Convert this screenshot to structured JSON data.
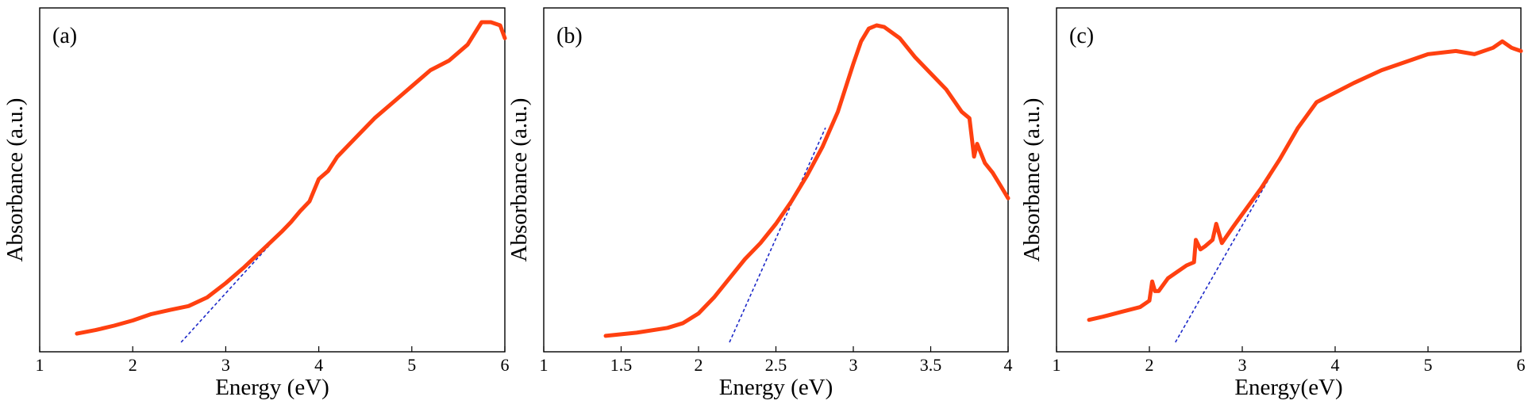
{
  "chart_data": [
    {
      "type": "line",
      "panel_label": "(a)",
      "xlabel": "Energy (eV)",
      "ylabel": "Absorbance (a.u.)",
      "xlim": [
        1,
        6
      ],
      "ylim": [
        0,
        1
      ],
      "x_ticks": [
        1,
        2,
        3,
        4,
        5,
        6
      ],
      "x_tick_labels": [
        "1",
        "2",
        "3",
        "4",
        "5",
        "6"
      ],
      "y_ticks_labeled": false,
      "series": [
        {
          "color": "#ff4010",
          "x": [
            1.4,
            1.6,
            1.8,
            2.0,
            2.2,
            2.4,
            2.6,
            2.8,
            3.0,
            3.2,
            3.4,
            3.6,
            3.7,
            3.8,
            3.9,
            4.0,
            4.1,
            4.2,
            4.4,
            4.6,
            4.8,
            5.0,
            5.2,
            5.4,
            5.6,
            5.75,
            5.85,
            5.95,
            6.0
          ],
          "y": [
            0.027,
            0.038,
            0.052,
            0.068,
            0.088,
            0.101,
            0.113,
            0.14,
            0.185,
            0.235,
            0.29,
            0.345,
            0.375,
            0.41,
            0.44,
            0.51,
            0.535,
            0.58,
            0.64,
            0.7,
            0.75,
            0.8,
            0.85,
            0.88,
            0.93,
            1.0,
            1.0,
            0.99,
            0.95
          ]
        }
      ],
      "tangent": {
        "color": "#1c28c8",
        "dashed": true,
        "x": [
          2.52,
          3.85
        ],
        "y": [
          0.0,
          0.425
        ]
      }
    },
    {
      "type": "line",
      "panel_label": "(b)",
      "xlabel": "Energy (eV)",
      "ylabel": "Absorbance (a.u.)",
      "xlim": [
        1,
        4
      ],
      "ylim": [
        0,
        1
      ],
      "x_ticks": [
        1,
        1.5,
        2,
        2.5,
        3,
        3.5,
        4
      ],
      "x_tick_labels": [
        "1",
        "1.5",
        "2",
        "2.5",
        "3",
        "3.5",
        "4"
      ],
      "y_ticks_labeled": false,
      "series": [
        {
          "color": "#ff4010",
          "x": [
            1.4,
            1.6,
            1.8,
            1.9,
            2.0,
            2.1,
            2.2,
            2.3,
            2.4,
            2.5,
            2.6,
            2.7,
            2.8,
            2.9,
            3.0,
            3.05,
            3.1,
            3.15,
            3.2,
            3.3,
            3.4,
            3.5,
            3.6,
            3.7,
            3.75,
            3.78,
            3.8,
            3.85,
            3.9,
            3.95,
            4.0
          ],
          "y": [
            0.02,
            0.03,
            0.045,
            0.06,
            0.09,
            0.14,
            0.2,
            0.26,
            0.31,
            0.37,
            0.44,
            0.52,
            0.61,
            0.72,
            0.87,
            0.94,
            0.98,
            0.99,
            0.985,
            0.95,
            0.89,
            0.84,
            0.79,
            0.72,
            0.7,
            0.58,
            0.62,
            0.56,
            0.53,
            0.49,
            0.45
          ]
        }
      ],
      "tangent": {
        "color": "#1c28c8",
        "dashed": true,
        "x": [
          2.2,
          2.82
        ],
        "y": [
          0.0,
          0.67
        ]
      }
    },
    {
      "type": "line",
      "panel_label": "(c)",
      "xlabel": "Energy(eV)",
      "ylabel": "Absorbance (a.u.)",
      "xlim": [
        1,
        6
      ],
      "ylim": [
        0,
        1
      ],
      "x_ticks": [
        1,
        2,
        3,
        4,
        5,
        6
      ],
      "x_tick_labels": [
        "1",
        "2",
        "3",
        "4",
        "5",
        "6"
      ],
      "y_ticks_labeled": false,
      "series": [
        {
          "color": "#ff4010",
          "x": [
            1.35,
            1.5,
            1.7,
            1.9,
            2.0,
            2.03,
            2.06,
            2.1,
            2.2,
            2.3,
            2.4,
            2.48,
            2.5,
            2.55,
            2.6,
            2.68,
            2.72,
            2.78,
            2.9,
            3.0,
            3.2,
            3.4,
            3.6,
            3.8,
            4.0,
            4.2,
            4.5,
            4.8,
            5.0,
            5.3,
            5.5,
            5.7,
            5.8,
            5.9,
            6.0
          ],
          "y": [
            0.07,
            0.08,
            0.095,
            0.11,
            0.13,
            0.19,
            0.16,
            0.16,
            0.2,
            0.22,
            0.24,
            0.25,
            0.32,
            0.29,
            0.3,
            0.32,
            0.37,
            0.31,
            0.36,
            0.4,
            0.48,
            0.57,
            0.67,
            0.75,
            0.78,
            0.81,
            0.85,
            0.88,
            0.9,
            0.91,
            0.9,
            0.92,
            0.94,
            0.92,
            0.91
          ]
        }
      ],
      "tangent": {
        "color": "#1c28c8",
        "dashed": true,
        "x": [
          2.28,
          3.62
        ],
        "y": [
          0.0,
          0.68
        ]
      }
    }
  ]
}
